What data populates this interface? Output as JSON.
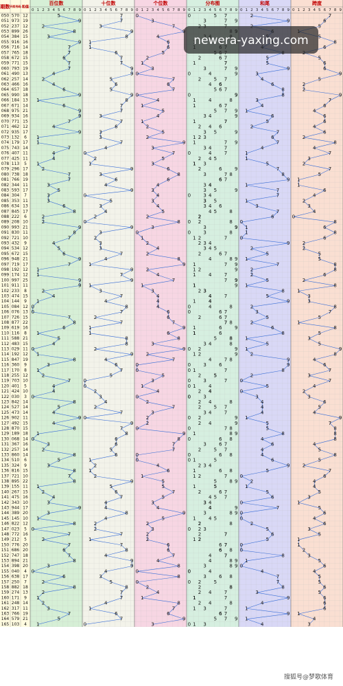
{
  "header": {
    "period": "期数",
    "number": "开奖号码",
    "sum": "和值",
    "sections": [
      "百位数",
      "十位数",
      "个位数",
      "分布图",
      "和尾",
      "跨度"
    ]
  },
  "digit_labels": [
    0,
    1,
    2,
    3,
    4,
    5,
    6,
    7,
    8,
    9
  ],
  "line_color": "#3a6fd8",
  "rows": [
    [
      "050",
      "570",
      12,
      5,
      7,
      0,
      2,
      7
    ],
    [
      "051",
      "973",
      19,
      9,
      7,
      3,
      9,
      6
    ],
    [
      "052",
      "237",
      12,
      2,
      3,
      7,
      2,
      5
    ],
    [
      "053",
      "899",
      26,
      8,
      9,
      9,
      6,
      1
    ],
    [
      "054",
      "384",
      15,
      3,
      8,
      4,
      5,
      5
    ],
    [
      "055",
      "916",
      16,
      9,
      1,
      6,
      6,
      8
    ],
    [
      "056",
      "716",
      14,
      7,
      1,
      6,
      4,
      6
    ],
    [
      "057",
      "765",
      18,
      7,
      6,
      5,
      8,
      2
    ],
    [
      "058",
      "672",
      15,
      6,
      7,
      2,
      5,
      5
    ],
    [
      "059",
      "771",
      15,
      7,
      7,
      1,
      5,
      6
    ],
    [
      "060",
      "793",
      19,
      7,
      9,
      3,
      9,
      6
    ],
    [
      "061",
      "490",
      13,
      4,
      9,
      0,
      3,
      9
    ],
    [
      "062",
      "257",
      14,
      2,
      5,
      7,
      4,
      5
    ],
    [
      "063",
      "466",
      16,
      4,
      6,
      6,
      6,
      2
    ],
    [
      "064",
      "657",
      18,
      6,
      5,
      7,
      8,
      2
    ],
    [
      "065",
      "990",
      18,
      9,
      9,
      0,
      8,
      9
    ],
    [
      "066",
      "184",
      13,
      1,
      8,
      4,
      3,
      7
    ],
    [
      "067",
      "671",
      14,
      6,
      7,
      1,
      4,
      6
    ],
    [
      "068",
      "975",
      21,
      9,
      7,
      5,
      1,
      4
    ],
    [
      "069",
      "934",
      16,
      9,
      3,
      4,
      6,
      6
    ],
    [
      "070",
      "771",
      15,
      7,
      7,
      1,
      5,
      6
    ],
    [
      "071",
      "462",
      12,
      4,
      6,
      2,
      2,
      4
    ],
    [
      "072",
      "935",
      17,
      9,
      3,
      5,
      7,
      6
    ],
    [
      "073",
      "132",
      6,
      1,
      3,
      2,
      6,
      2
    ],
    [
      "074",
      "179",
      17,
      1,
      7,
      9,
      7,
      8
    ],
    [
      "075",
      "743",
      14,
      7,
      4,
      3,
      4,
      4
    ],
    [
      "076",
      "407",
      11,
      4,
      0,
      7,
      1,
      7
    ],
    [
      "077",
      "425",
      11,
      4,
      2,
      5,
      1,
      3
    ],
    [
      "078",
      "113",
      5,
      1,
      1,
      3,
      5,
      2
    ],
    [
      "079",
      "296",
      17,
      2,
      9,
      6,
      7,
      7
    ],
    [
      "080",
      "738",
      18,
      7,
      3,
      8,
      8,
      5
    ],
    [
      "081",
      "766",
      19,
      7,
      6,
      6,
      9,
      1
    ],
    [
      "082",
      "344",
      11,
      3,
      4,
      4,
      1,
      1
    ],
    [
      "083",
      "593",
      17,
      5,
      9,
      3,
      7,
      6
    ],
    [
      "084",
      "304",
      7,
      3,
      0,
      4,
      7,
      4
    ],
    [
      "085",
      "353",
      11,
      3,
      5,
      3,
      1,
      2
    ],
    [
      "086",
      "634",
      13,
      6,
      3,
      4,
      3,
      3
    ],
    [
      "087",
      "845",
      17,
      8,
      4,
      5,
      7,
      4
    ],
    [
      "088",
      "222",
      6,
      2,
      2,
      2,
      6,
      0
    ],
    [
      "089",
      "208",
      10,
      2,
      0,
      8,
      0,
      8
    ],
    [
      "090",
      "993",
      21,
      9,
      9,
      3,
      1,
      6
    ],
    [
      "091",
      "830",
      11,
      8,
      3,
      0,
      1,
      8
    ],
    [
      "092",
      "721",
      10,
      7,
      2,
      1,
      0,
      6
    ],
    [
      "093",
      "432",
      9,
      4,
      3,
      2,
      9,
      2
    ],
    [
      "094",
      "534",
      12,
      5,
      3,
      4,
      2,
      2
    ],
    [
      "095",
      "672",
      15,
      6,
      7,
      2,
      5,
      5
    ],
    [
      "096",
      "948",
      21,
      9,
      4,
      8,
      1,
      5
    ],
    [
      "097",
      "719",
      17,
      7,
      1,
      9,
      7,
      8
    ],
    [
      "098",
      "192",
      12,
      1,
      9,
      2,
      2,
      8
    ],
    [
      "099",
      "174",
      12,
      1,
      7,
      4,
      2,
      6
    ],
    [
      "100",
      "997",
      25,
      9,
      9,
      7,
      5,
      2
    ],
    [
      "101",
      "911",
      11,
      9,
      1,
      1,
      1,
      8
    ],
    [
      "102",
      "233",
      8,
      2,
      3,
      3,
      8,
      1
    ],
    [
      "103",
      "474",
      15,
      4,
      7,
      4,
      5,
      3
    ],
    [
      "104",
      "144",
      9,
      1,
      4,
      4,
      9,
      3
    ],
    [
      "105",
      "084",
      12,
      0,
      8,
      4,
      2,
      8
    ],
    [
      "106",
      "076",
      13,
      0,
      7,
      6,
      3,
      7
    ],
    [
      "107",
      "726",
      15,
      7,
      2,
      6,
      5,
      5
    ],
    [
      "108",
      "877",
      22,
      8,
      7,
      7,
      2,
      1
    ],
    [
      "109",
      "619",
      16,
      6,
      1,
      9,
      6,
      8
    ],
    [
      "110",
      "116",
      8,
      1,
      1,
      6,
      8,
      5
    ],
    [
      "111",
      "588",
      21,
      5,
      8,
      8,
      1,
      3
    ],
    [
      "112",
      "483",
      15,
      4,
      8,
      3,
      5,
      5
    ],
    [
      "113",
      "029",
      11,
      0,
      2,
      9,
      1,
      9
    ],
    [
      "114",
      "192",
      12,
      1,
      9,
      2,
      2,
      8
    ],
    [
      "115",
      "847",
      19,
      8,
      4,
      7,
      9,
      4
    ],
    [
      "116",
      "360",
      9,
      3,
      6,
      0,
      9,
      6
    ],
    [
      "117",
      "170",
      8,
      1,
      7,
      0,
      8,
      7
    ],
    [
      "118",
      "255",
      12,
      2,
      5,
      5,
      2,
      3
    ],
    [
      "119",
      "703",
      10,
      7,
      0,
      3,
      0,
      7
    ],
    [
      "120",
      "401",
      5,
      4,
      0,
      1,
      5,
      4
    ],
    [
      "121",
      "424",
      10,
      4,
      2,
      4,
      0,
      2
    ],
    [
      "122",
      "030",
      3,
      0,
      3,
      0,
      3,
      3
    ],
    [
      "123",
      "842",
      14,
      8,
      4,
      2,
      4,
      6
    ],
    [
      "124",
      "527",
      14,
      5,
      2,
      7,
      4,
      5
    ],
    [
      "125",
      "473",
      14,
      4,
      7,
      3,
      4,
      4
    ],
    [
      "126",
      "902",
      11,
      9,
      0,
      2,
      1,
      9
    ],
    [
      "127",
      "492",
      15,
      4,
      9,
      2,
      5,
      7
    ],
    [
      "128",
      "870",
      15,
      8,
      7,
      0,
      5,
      8
    ],
    [
      "129",
      "189",
      18,
      1,
      8,
      9,
      8,
      8
    ],
    [
      "130",
      "068",
      14,
      0,
      6,
      8,
      4,
      8
    ],
    [
      "131",
      "367",
      16,
      3,
      6,
      7,
      6,
      4
    ],
    [
      "132",
      "257",
      14,
      2,
      5,
      7,
      4,
      5
    ],
    [
      "133",
      "860",
      14,
      8,
      6,
      0,
      4,
      8
    ],
    [
      "134",
      "510",
      6,
      5,
      1,
      0,
      6,
      5
    ],
    [
      "135",
      "324",
      9,
      3,
      2,
      4,
      9,
      2
    ],
    [
      "136",
      "816",
      15,
      8,
      1,
      6,
      5,
      7
    ],
    [
      "137",
      "721",
      10,
      7,
      2,
      1,
      0,
      6
    ],
    [
      "138",
      "895",
      22,
      8,
      9,
      5,
      2,
      4
    ],
    [
      "139",
      "155",
      11,
      1,
      5,
      5,
      1,
      4
    ],
    [
      "140",
      "267",
      15,
      2,
      6,
      7,
      5,
      5
    ],
    [
      "141",
      "475",
      16,
      4,
      7,
      5,
      6,
      3
    ],
    [
      "142",
      "343",
      10,
      3,
      4,
      3,
      0,
      1
    ],
    [
      "143",
      "944",
      17,
      9,
      4,
      4,
      7,
      5
    ],
    [
      "144",
      "389",
      20,
      3,
      8,
      9,
      0,
      6
    ],
    [
      "145",
      "145",
      10,
      1,
      4,
      5,
      0,
      4
    ],
    [
      "146",
      "822",
      12,
      8,
      2,
      2,
      2,
      6
    ],
    [
      "147",
      "023",
      5,
      0,
      2,
      3,
      5,
      3
    ],
    [
      "148",
      "772",
      16,
      7,
      7,
      2,
      6,
      5
    ],
    [
      "149",
      "212",
      5,
      2,
      1,
      2,
      5,
      1
    ],
    [
      "150",
      "776",
      20,
      7,
      7,
      6,
      0,
      1
    ],
    [
      "151",
      "686",
      20,
      6,
      8,
      6,
      0,
      2
    ],
    [
      "152",
      "747",
      18,
      7,
      4,
      7,
      8,
      3
    ],
    [
      "153",
      "894",
      21,
      8,
      9,
      4,
      1,
      5
    ],
    [
      "154",
      "398",
      20,
      3,
      9,
      8,
      0,
      6
    ],
    [
      "155",
      "040",
      4,
      0,
      4,
      0,
      4,
      4
    ],
    [
      "156",
      "638",
      17,
      6,
      3,
      8,
      7,
      5
    ],
    [
      "157",
      "250",
      7,
      2,
      5,
      0,
      7,
      5
    ],
    [
      "158",
      "882",
      18,
      8,
      8,
      2,
      8,
      6
    ],
    [
      "159",
      "274",
      13,
      2,
      7,
      4,
      3,
      5
    ],
    [
      "160",
      "171",
      9,
      1,
      7,
      1,
      9,
      6
    ],
    [
      "161",
      "248",
      14,
      2,
      4,
      8,
      4,
      6
    ],
    [
      "162",
      "317",
      11,
      3,
      1,
      7,
      1,
      6
    ],
    [
      "163",
      "766",
      19,
      7,
      6,
      6,
      9,
      1
    ],
    [
      "164",
      "579",
      21,
      5,
      7,
      9,
      1,
      4
    ],
    [
      "165",
      "103",
      4,
      1,
      0,
      3,
      4,
      3
    ]
  ],
  "watermark": "newera-yaxing.com",
  "footer": "搜狐号@梦歌体育"
}
